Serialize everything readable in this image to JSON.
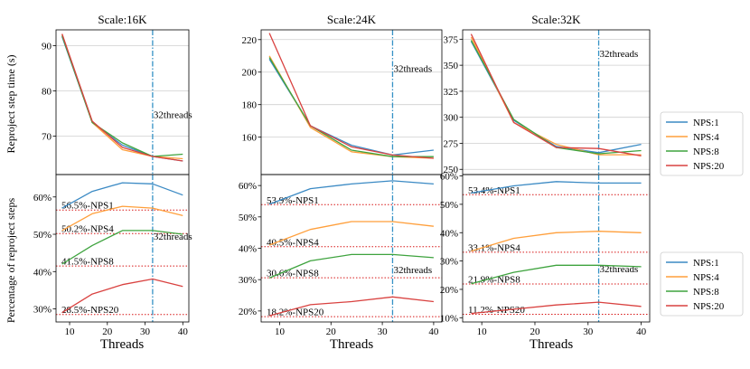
{
  "chart_data": {
    "type": "line",
    "threads": [
      8,
      16,
      24,
      32,
      40
    ],
    "xlabel": "Threads",
    "xticks": [
      10,
      20,
      30,
      40
    ],
    "xlim": [
      6.4,
      41.6
    ],
    "vline": {
      "x": 32,
      "label": "32threads",
      "color": "#3591c5"
    },
    "series_names": [
      "NPS:1",
      "NPS:4",
      "NPS:8",
      "NPS:20"
    ],
    "colors": [
      "#3b8ac4",
      "#ff9f3b",
      "#3ea33e",
      "#d94240"
    ],
    "legends": [
      {
        "panel": "top",
        "entries": [
          "NPS:1",
          "NPS:4",
          "NPS:8",
          "NPS:20"
        ]
      },
      {
        "panel": "bottom",
        "entries": [
          "NPS:1",
          "NPS:4",
          "NPS:8",
          "NPS:20"
        ]
      }
    ],
    "top_row": {
      "ylabel": "Reproject step time (s)",
      "panels": [
        {
          "title": "Scale:16K",
          "ylim": [
            61.5,
            93.5
          ],
          "yticks": [
            70,
            80,
            90
          ],
          "vline_label_y": 74,
          "series": [
            {
              "name": "NPS:1",
              "values": [
                92.0,
                73.0,
                68.0,
                65.5,
                64.5
              ]
            },
            {
              "name": "NPS:4",
              "values": [
                92.5,
                73.0,
                67.0,
                65.5,
                65.0
              ]
            },
            {
              "name": "NPS:8",
              "values": [
                92.2,
                73.0,
                68.5,
                65.5,
                66.0
              ]
            },
            {
              "name": "NPS:20",
              "values": [
                92.6,
                73.3,
                67.5,
                65.5,
                64.5
              ]
            }
          ]
        },
        {
          "title": "Scale:24K",
          "ylim": [
            137,
            226
          ],
          "yticks": [
            160,
            180,
            200,
            220
          ],
          "vline_label_y": 200,
          "series": [
            {
              "name": "NPS:1",
              "values": [
                208.0,
                167.0,
                155.0,
                149.0,
                152.0
              ]
            },
            {
              "name": "NPS:4",
              "values": [
                210.0,
                166.0,
                151.0,
                148.0,
                147.0
              ]
            },
            {
              "name": "NPS:8",
              "values": [
                209.0,
                167.0,
                152.0,
                148.0,
                148.0
              ]
            },
            {
              "name": "NPS:20",
              "values": [
                224.0,
                167.0,
                154.0,
                149.0,
                147.0
              ]
            }
          ]
        },
        {
          "title": "Scale:32K",
          "ylim": [
            245,
            384
          ],
          "yticks": [
            250,
            275,
            300,
            325,
            350,
            375
          ],
          "vline_label_y": 358,
          "series": [
            {
              "name": "NPS:1",
              "values": [
                373.0,
                297.0,
                272.0,
                266.0,
                274.0
              ]
            },
            {
              "name": "NPS:4",
              "values": [
                377.0,
                295.0,
                274.0,
                264.0,
                264.0
              ]
            },
            {
              "name": "NPS:8",
              "values": [
                374.0,
                298.0,
                271.0,
                265.0,
                268.0
              ]
            },
            {
              "name": "NPS:20",
              "values": [
                380.0,
                295.0,
                271.0,
                270.0,
                263.0
              ]
            }
          ]
        }
      ]
    },
    "bottom_row": {
      "ylabel": "Percentage of reproject steps",
      "panels": [
        {
          "ylim": [
            26.5,
            66.0
          ],
          "yticks": [
            30,
            40,
            50,
            60
          ],
          "ytick_labels": [
            "30%",
            "40%",
            "50%",
            "60%"
          ],
          "vline_label_y": 48.5,
          "hlines": [
            {
              "value": 56.5,
              "label": "56.5%-NPS1"
            },
            {
              "value": 50.2,
              "label": "50.2%-NPS4"
            },
            {
              "value": 41.5,
              "label": "41.5%-NPS8"
            },
            {
              "value": 28.5,
              "label": "28.5%-NPS20"
            }
          ],
          "series": [
            {
              "name": "NPS:1",
              "values": [
                57.0,
                61.5,
                63.8,
                63.5,
                60.5
              ]
            },
            {
              "name": "NPS:4",
              "values": [
                51.0,
                55.5,
                57.5,
                57.0,
                55.0
              ]
            },
            {
              "name": "NPS:8",
              "values": [
                42.0,
                47.0,
                51.0,
                51.0,
                50.0
              ]
            },
            {
              "name": "NPS:20",
              "values": [
                29.0,
                34.0,
                36.5,
                38.0,
                36.0
              ]
            }
          ]
        },
        {
          "ylim": [
            16.5,
            63.5
          ],
          "yticks": [
            20,
            30,
            40,
            50,
            60
          ],
          "ytick_labels": [
            "20%",
            "30%",
            "40%",
            "50%",
            "60%"
          ],
          "vline_label_y": 32.0,
          "hlines": [
            {
              "value": 53.9,
              "label": "53.9%-NPS1"
            },
            {
              "value": 40.5,
              "label": "40.5%-NPS4"
            },
            {
              "value": 30.6,
              "label": "30.6%-NPS8"
            },
            {
              "value": 18.2,
              "label": "18.2%-NPS20"
            }
          ],
          "series": [
            {
              "name": "NPS:1",
              "values": [
                54.0,
                59.0,
                60.5,
                61.5,
                60.5
              ]
            },
            {
              "name": "NPS:4",
              "values": [
                41.0,
                46.0,
                48.5,
                48.5,
                47.0
              ]
            },
            {
              "name": "NPS:8",
              "values": [
                30.5,
                36.0,
                38.0,
                38.0,
                37.0
              ]
            },
            {
              "name": "NPS:20",
              "values": [
                18.5,
                22.0,
                23.0,
                24.5,
                23.0
              ]
            }
          ]
        },
        {
          "ylim": [
            8.5,
            60.5
          ],
          "yticks": [
            10,
            20,
            30,
            40,
            50,
            60
          ],
          "ytick_labels": [
            "10%",
            "20%",
            "30%",
            "40%",
            "50%",
            "60%"
          ],
          "vline_label_y": 26.0,
          "hlines": [
            {
              "value": 53.4,
              "label": "53.4%-NPS1"
            },
            {
              "value": 33.1,
              "label": "33.1%-NPS4"
            },
            {
              "value": 21.9,
              "label": "21.9%-NPS8"
            },
            {
              "value": 11.2,
              "label": "11.2%-NPS20"
            }
          ],
          "series": [
            {
              "name": "NPS:1",
              "values": [
                54.0,
                56.5,
                58.0,
                57.5,
                57.5
              ]
            },
            {
              "name": "NPS:4",
              "values": [
                33.5,
                38.0,
                40.0,
                40.5,
                40.0
              ]
            },
            {
              "name": "NPS:8",
              "values": [
                22.0,
                26.0,
                28.5,
                28.5,
                28.0
              ]
            },
            {
              "name": "NPS:20",
              "values": [
                11.5,
                13.0,
                14.5,
                15.5,
                14.0
              ]
            }
          ]
        }
      ]
    }
  }
}
